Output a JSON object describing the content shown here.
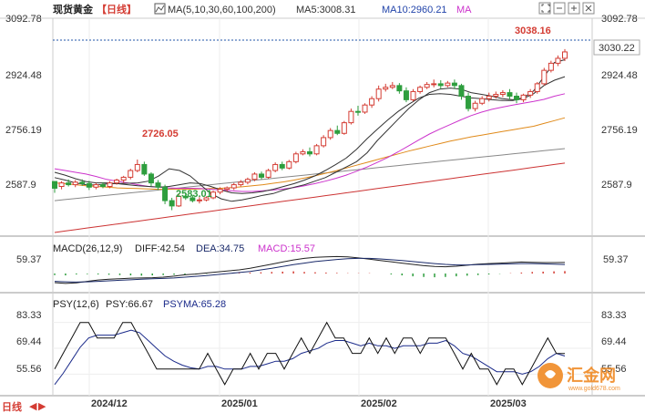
{
  "header": {
    "instrument": "现货黄金",
    "period": "【日线】",
    "ma_label": "MA(5,10,30,60,100,200)",
    "ma5_label": "MA5:3008.31",
    "ma10_label": "MA10:2960.21",
    "ma_extra": "MA",
    "icons": [
      "expand-icon",
      "minus-icon",
      "plus-icon",
      "close-icon"
    ]
  },
  "macd_legend": {
    "title": "MACD(26,12,9)",
    "diff": "DIFF:42.54",
    "dea": "DEA:34.75",
    "macd": "MACD:15.57"
  },
  "psy_legend": {
    "title": "PSY(12,6)",
    "psy": "PSY:66.67",
    "psyma": "PSYMA:65.28"
  },
  "footer": {
    "period_tab": "日线",
    "arrow_left": "◀",
    "arrow_right": "▶"
  },
  "watermark": {
    "brand": "汇金网",
    "url": "www.gold678.com"
  },
  "colors": {
    "up": "#d43c33",
    "down": "#2e9e3e",
    "ma5": "#333333",
    "ma10": "#333333",
    "ma30": "#cc33cc",
    "ma60": "#e08a1a",
    "ma100": "#888888",
    "ma200": "#cc3333",
    "diff": "#222222",
    "dea": "#1a2a6a",
    "psy": "#111111",
    "psyma": "#1a2a8a",
    "grid": "#dddddd"
  },
  "chart_data": [
    {
      "type": "candlestick",
      "title": "现货黄金 日线",
      "yaxis_ticks": [
        3092.78,
        2924.48,
        2756.19,
        2587.9
      ],
      "ylim": [
        2520,
        3120
      ],
      "x_labels": [
        "2024/12",
        "2025/01",
        "2025/02",
        "2025/03"
      ],
      "last_price": "3030.22",
      "annotations": [
        {
          "text": "3038.16",
          "kind": "high"
        },
        {
          "text": "2726.05",
          "kind": "high"
        },
        {
          "text": "2583.01",
          "kind": "low"
        }
      ],
      "candles": [
        [
          2664,
          2665,
          2645,
          2632
        ],
        [
          2650,
          2665,
          2660,
          2642
        ],
        [
          2660,
          2670,
          2655,
          2650
        ],
        [
          2655,
          2668,
          2662,
          2648
        ],
        [
          2662,
          2670,
          2658,
          2652
        ],
        [
          2658,
          2666,
          2648,
          2640
        ],
        [
          2648,
          2660,
          2655,
          2642
        ],
        [
          2655,
          2662,
          2650,
          2645
        ],
        [
          2650,
          2665,
          2660,
          2645
        ],
        [
          2660,
          2672,
          2668,
          2655
        ],
        [
          2668,
          2680,
          2676,
          2660
        ],
        [
          2676,
          2700,
          2695,
          2670
        ],
        [
          2695,
          2726,
          2712,
          2690
        ],
        [
          2712,
          2720,
          2685,
          2680
        ],
        [
          2685,
          2690,
          2660,
          2650
        ],
        [
          2660,
          2668,
          2648,
          2640
        ],
        [
          2648,
          2655,
          2610,
          2600
        ],
        [
          2610,
          2618,
          2595,
          2583
        ],
        [
          2595,
          2630,
          2622,
          2592
        ],
        [
          2622,
          2632,
          2618,
          2612
        ],
        [
          2618,
          2625,
          2610,
          2605
        ],
        [
          2610,
          2620,
          2612,
          2602
        ],
        [
          2612,
          2622,
          2618,
          2608
        ],
        [
          2618,
          2638,
          2634,
          2614
        ],
        [
          2634,
          2648,
          2642,
          2628
        ],
        [
          2642,
          2650,
          2646,
          2636
        ],
        [
          2646,
          2660,
          2655,
          2640
        ],
        [
          2655,
          2668,
          2662,
          2650
        ],
        [
          2662,
          2675,
          2670,
          2656
        ],
        [
          2670,
          2690,
          2685,
          2665
        ],
        [
          2685,
          2692,
          2676,
          2670
        ],
        [
          2676,
          2700,
          2695,
          2672
        ],
        [
          2695,
          2718,
          2712,
          2690
        ],
        [
          2712,
          2720,
          2702,
          2696
        ],
        [
          2702,
          2725,
          2720,
          2698
        ],
        [
          2720,
          2748,
          2742,
          2715
        ],
        [
          2742,
          2755,
          2748,
          2738
        ],
        [
          2748,
          2760,
          2742,
          2735
        ],
        [
          2742,
          2770,
          2765,
          2738
        ],
        [
          2765,
          2795,
          2788,
          2760
        ],
        [
          2788,
          2815,
          2808,
          2782
        ],
        [
          2808,
          2822,
          2800,
          2795
        ],
        [
          2800,
          2835,
          2830,
          2796
        ],
        [
          2830,
          2870,
          2862,
          2825
        ],
        [
          2862,
          2878,
          2860,
          2850
        ],
        [
          2860,
          2885,
          2880,
          2855
        ],
        [
          2880,
          2905,
          2898,
          2872
        ],
        [
          2898,
          2935,
          2925,
          2890
        ],
        [
          2925,
          2940,
          2930,
          2918
        ],
        [
          2930,
          2945,
          2935,
          2925
        ],
        [
          2935,
          2942,
          2920,
          2912
        ],
        [
          2920,
          2930,
          2895,
          2888
        ],
        [
          2895,
          2925,
          2918,
          2890
        ],
        [
          2918,
          2935,
          2930,
          2912
        ],
        [
          2930,
          2945,
          2938,
          2925
        ],
        [
          2938,
          2952,
          2940,
          2930
        ],
        [
          2940,
          2950,
          2935,
          2926
        ],
        [
          2935,
          2948,
          2942,
          2930
        ],
        [
          2942,
          2952,
          2935,
          2925
        ],
        [
          2935,
          2940,
          2905,
          2895
        ],
        [
          2905,
          2915,
          2870,
          2862
        ],
        [
          2870,
          2892,
          2885,
          2862
        ],
        [
          2885,
          2905,
          2898,
          2880
        ],
        [
          2898,
          2915,
          2905,
          2890
        ],
        [
          2905,
          2918,
          2910,
          2898
        ],
        [
          2910,
          2922,
          2915,
          2902
        ],
        [
          2915,
          2925,
          2905,
          2895
        ],
        [
          2905,
          2915,
          2895,
          2885
        ],
        [
          2895,
          2912,
          2908,
          2888
        ],
        [
          2908,
          2925,
          2918,
          2900
        ],
        [
          2918,
          2945,
          2940,
          2912
        ],
        [
          2940,
          2985,
          2978,
          2935
        ],
        [
          2978,
          3005,
          2998,
          2972
        ],
        [
          2998,
          3020,
          3012,
          2990
        ],
        [
          3012,
          3038,
          3030,
          3004
        ]
      ],
      "ma_lines": [
        {
          "name": "MA5",
          "values": [
            2675,
            2668,
            2660,
            2655,
            2654,
            2657,
            2658,
            2659,
            2660,
            2665,
            2680,
            2700,
            2695,
            2680,
            2655,
            2630,
            2615,
            2608,
            2612,
            2618,
            2625,
            2630,
            2640,
            2648,
            2655,
            2665,
            2675,
            2690,
            2705,
            2720,
            2745,
            2780,
            2810,
            2840,
            2870,
            2895,
            2915,
            2925,
            2928,
            2925,
            2915,
            2910,
            2905,
            2898,
            2895,
            2900,
            2920,
            2960,
            3000,
            3008
          ]
        },
        {
          "name": "MA10",
          "values": [
            2690,
            2682,
            2672,
            2664,
            2660,
            2660,
            2658,
            2655,
            2652,
            2650,
            2648,
            2650,
            2655,
            2660,
            2658,
            2650,
            2640,
            2632,
            2630,
            2632,
            2636,
            2642,
            2650,
            2658,
            2668,
            2680,
            2695,
            2712,
            2730,
            2755,
            2785,
            2812,
            2838,
            2862,
            2882,
            2900,
            2910,
            2912,
            2910,
            2905,
            2900,
            2898,
            2895,
            2893,
            2893,
            2898,
            2912,
            2935,
            2950,
            2960
          ]
        },
        {
          "name": "MA30",
          "values": [
            2700,
            2695,
            2690,
            2685,
            2678,
            2670,
            2665,
            2660,
            2655,
            2650,
            2648,
            2646,
            2645,
            2645,
            2644,
            2642,
            2640,
            2638,
            2636,
            2636,
            2638,
            2640,
            2643,
            2647,
            2652,
            2658,
            2665,
            2673,
            2682,
            2693,
            2705,
            2718,
            2732,
            2748,
            2765,
            2782,
            2798,
            2812,
            2825,
            2838,
            2850,
            2860,
            2868,
            2874,
            2880,
            2885,
            2890,
            2896,
            2905,
            2912
          ]
        },
        {
          "name": "MA60",
          "values": [
            2660,
            2658,
            2655,
            2652,
            2650,
            2648,
            2646,
            2645,
            2644,
            2643,
            2642,
            2642,
            2642,
            2642,
            2643,
            2644,
            2645,
            2647,
            2649,
            2652,
            2655,
            2659,
            2663,
            2668,
            2674,
            2680,
            2687,
            2694,
            2702,
            2710,
            2718,
            2726,
            2734,
            2742,
            2750,
            2757,
            2764,
            2771,
            2778,
            2784,
            2790,
            2795,
            2800,
            2805,
            2810,
            2815,
            2820,
            2828,
            2836,
            2844
          ]
        },
        {
          "name": "MA100",
          "values": [
            2610,
            2613,
            2616,
            2619,
            2622,
            2625,
            2628,
            2631,
            2634,
            2637,
            2640,
            2643,
            2646,
            2649,
            2652,
            2655,
            2658,
            2661,
            2664,
            2667,
            2670,
            2673,
            2676,
            2679,
            2682,
            2685,
            2688,
            2691,
            2694,
            2697,
            2700,
            2703,
            2706,
            2709,
            2712,
            2715,
            2718,
            2721,
            2724,
            2727,
            2730,
            2733,
            2736,
            2739,
            2742,
            2745,
            2748,
            2751,
            2754,
            2757
          ]
        },
        {
          "name": "MA200",
          "values": [
            2520,
            2524,
            2528,
            2532,
            2536,
            2540,
            2544,
            2548,
            2552,
            2556,
            2560,
            2564,
            2568,
            2572,
            2576,
            2580,
            2584,
            2588,
            2592,
            2596,
            2600,
            2604,
            2608,
            2612,
            2616,
            2620,
            2624,
            2628,
            2632,
            2636,
            2640,
            2644,
            2648,
            2652,
            2656,
            2660,
            2664,
            2668,
            2672,
            2676,
            2680,
            2684,
            2688,
            2692,
            2696,
            2700,
            2704,
            2708,
            2712,
            2716
          ]
        }
      ]
    },
    {
      "type": "line",
      "title": "MACD(26,12,9)",
      "yaxis_ticks": [
        59.37
      ],
      "ylim": [
        -70,
        70
      ],
      "series": [
        {
          "name": "DIFF",
          "values": [
            -35,
            -38,
            -36,
            -30,
            -25,
            -22,
            -20,
            -18,
            -17,
            -16,
            -14,
            -10,
            -5,
            -2,
            2,
            6,
            10,
            14,
            20,
            28,
            36,
            44,
            52,
            58,
            62,
            64,
            65,
            64,
            60,
            55,
            50,
            45,
            40,
            35,
            30,
            27,
            26,
            28,
            32,
            36,
            38,
            40,
            42,
            44,
            43,
            42,
            42,
            42.5
          ]
        },
        {
          "name": "DEA",
          "values": [
            -30,
            -32,
            -33,
            -32,
            -30,
            -28,
            -26,
            -24,
            -22,
            -20,
            -19,
            -17,
            -14,
            -11,
            -8,
            -4,
            0,
            4,
            8,
            14,
            20,
            27,
            34,
            40,
            46,
            50,
            54,
            57,
            58,
            58,
            56,
            53,
            50,
            46,
            42,
            38,
            35,
            33,
            33,
            34,
            35,
            36,
            37,
            38,
            38,
            37,
            36,
            34.75
          ]
        },
        {
          "name": "MACD",
          "values": [
            -10,
            -12,
            -6,
            -4,
            -6,
            -8,
            -10,
            -12,
            -14,
            -12,
            -10,
            -8,
            -6,
            -4,
            -2,
            0,
            2,
            4,
            6,
            8,
            10,
            12,
            14,
            10,
            8,
            6,
            4,
            2,
            2,
            2,
            0,
            -6,
            -12,
            -18,
            -22,
            -24,
            -22,
            -18,
            -14,
            -10,
            -6,
            -2,
            2,
            6,
            10,
            12,
            14,
            15.57
          ]
        }
      ]
    },
    {
      "type": "line",
      "title": "PSY(12,6)",
      "yaxis_ticks": [
        83.33,
        69.44,
        55.56
      ],
      "ylim": [
        45,
        90
      ],
      "series": [
        {
          "name": "PSY",
          "values": [
            58.3,
            66.7,
            75.0,
            83.3,
            83.3,
            75.0,
            75.0,
            75.0,
            83.3,
            83.3,
            75.0,
            66.7,
            58.3,
            58.3,
            58.3,
            58.3,
            58.3,
            58.3,
            66.7,
            58.3,
            50.0,
            58.3,
            58.3,
            66.7,
            58.3,
            66.7,
            66.7,
            58.3,
            66.7,
            75.0,
            66.7,
            75.0,
            83.3,
            75.0,
            75.0,
            66.7,
            66.7,
            75.0,
            66.7,
            75.0,
            66.7,
            75.0,
            75.0,
            66.7,
            75.0,
            75.0,
            75.0,
            66.7,
            58.3,
            66.7,
            58.3,
            58.3,
            50.0,
            58.3,
            58.3,
            50.0,
            58.3,
            66.7,
            75.0,
            66.7,
            66.67
          ]
        },
        {
          "name": "PSYMA",
          "values": [
            50.0,
            56.0,
            63.0,
            70.0,
            75.0,
            76.5,
            76.5,
            76.5,
            77.8,
            79.2,
            77.8,
            73.6,
            69.4,
            65.3,
            62.5,
            60.4,
            59.0,
            58.3,
            59.7,
            59.7,
            58.3,
            58.3,
            58.3,
            59.7,
            59.7,
            61.1,
            62.5,
            62.5,
            63.9,
            66.7,
            68.1,
            69.4,
            72.2,
            73.6,
            73.6,
            72.2,
            70.8,
            72.2,
            70.8,
            70.8,
            69.4,
            70.8,
            70.8,
            70.8,
            72.2,
            72.2,
            73.6,
            70.8,
            66.7,
            65.3,
            62.5,
            59.7,
            56.9,
            56.9,
            56.9,
            55.6,
            56.9,
            59.7,
            63.9,
            66.7,
            65.28
          ]
        }
      ]
    }
  ]
}
